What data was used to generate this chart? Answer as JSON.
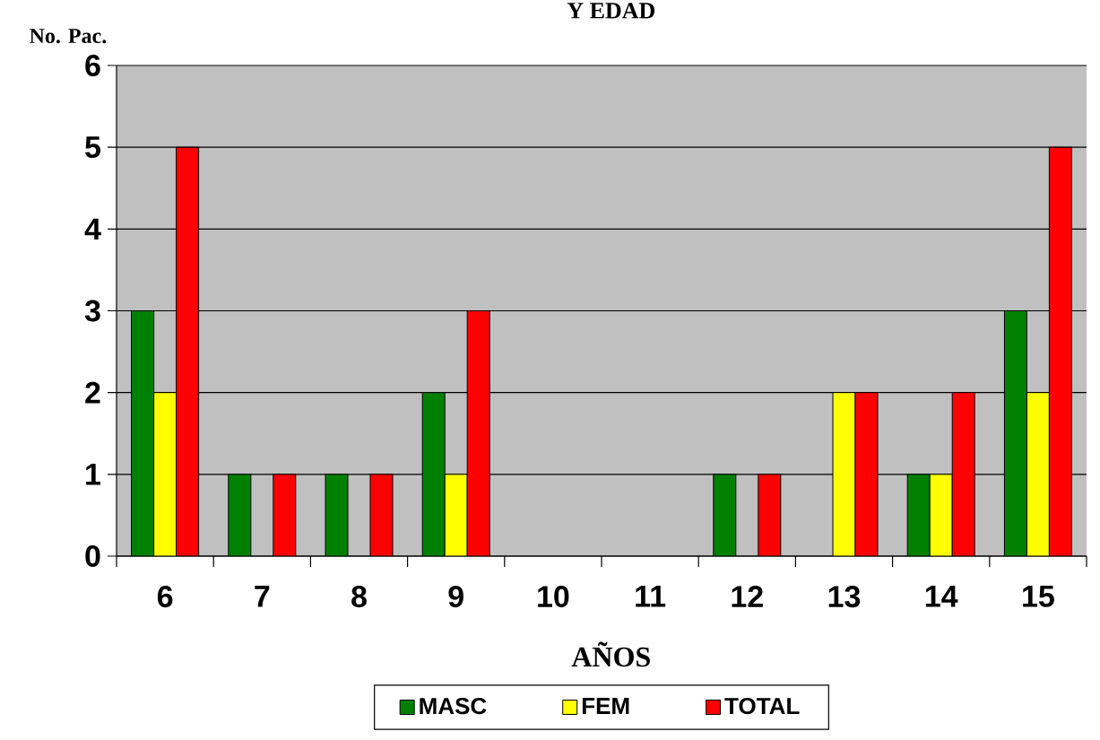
{
  "chart_data": {
    "type": "bar",
    "title": "Y  EDAD",
    "xlabel": "AÑOS",
    "ylabel": "No. Pac.",
    "categories": [
      "6",
      "7",
      "8",
      "9",
      "10",
      "11",
      "12",
      "13",
      "14",
      "15"
    ],
    "series": [
      {
        "name": "MASC",
        "color": "#008000",
        "values": [
          3,
          1,
          1,
          2,
          0,
          0,
          1,
          0,
          1,
          3
        ]
      },
      {
        "name": "FEM",
        "color": "#ffff00",
        "values": [
          2,
          0,
          0,
          1,
          0,
          0,
          0,
          2,
          1,
          2
        ]
      },
      {
        "name": "TOTAL",
        "color": "#ff0000",
        "values": [
          5,
          1,
          1,
          3,
          0,
          0,
          1,
          2,
          2,
          5
        ]
      }
    ],
    "ylim": [
      0,
      6
    ],
    "yticks": [
      0,
      1,
      2,
      3,
      4,
      5,
      6
    ],
    "grid": "y",
    "legend": "bottom"
  }
}
